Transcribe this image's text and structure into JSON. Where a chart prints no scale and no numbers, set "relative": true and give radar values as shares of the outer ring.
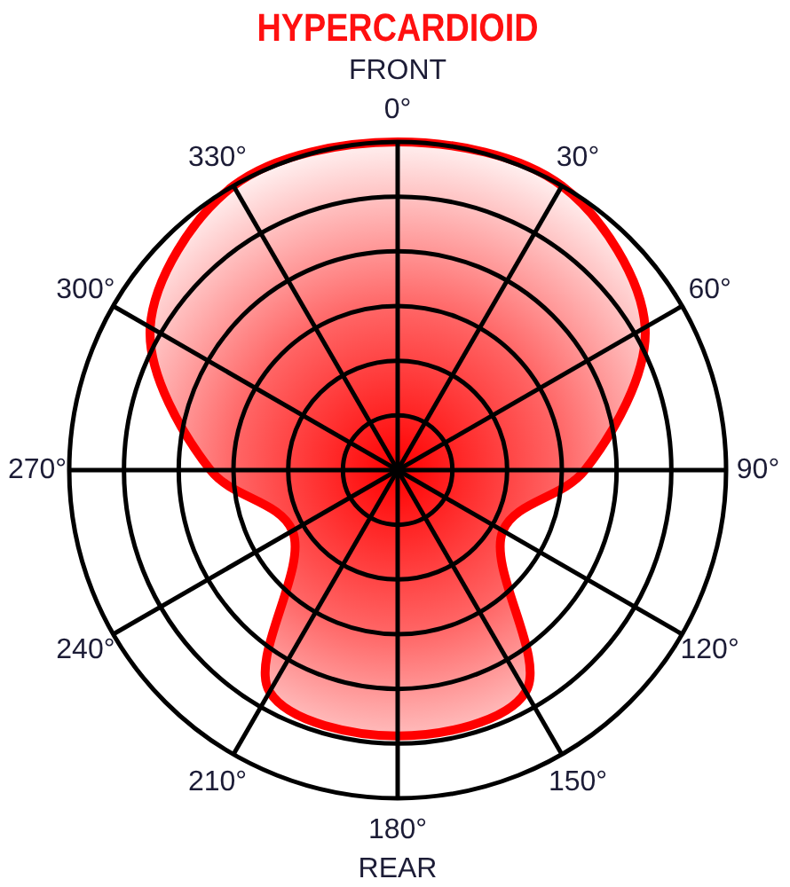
{
  "chart_data": {
    "type": "radar",
    "title": "HYPERCARDIOID",
    "relative": true,
    "grid": true,
    "categories": [
      "0°",
      "30°",
      "60°",
      "90°",
      "120°",
      "150°",
      "180°",
      "210°",
      "240°",
      "270°",
      "300°",
      "330°"
    ],
    "series": [
      {
        "color": "#ff0000",
        "values": [
          1,
          1,
          0.87,
          0.57,
          0.37,
          0.78,
          0.81,
          0.78,
          0.37,
          0.57,
          0.87,
          1
        ]
      }
    ],
    "annotations": [
      "FRONT",
      "REAR"
    ]
  }
}
